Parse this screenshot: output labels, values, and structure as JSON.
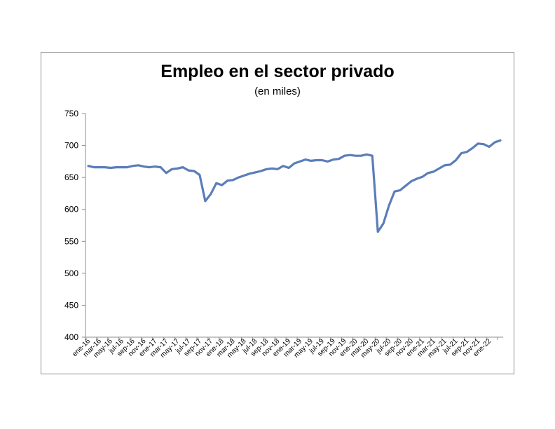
{
  "chart_data": {
    "type": "line",
    "title": "Empleo en el sector privado",
    "subtitle": "(en miles)",
    "xlabel": "",
    "ylabel": "",
    "ylim": [
      400,
      750
    ],
    "yticks": [
      400,
      450,
      500,
      550,
      600,
      650,
      700,
      750
    ],
    "grid": false,
    "legend": "none",
    "line_color": "#5b7db8",
    "x_tick_labels": [
      "ene-16",
      "mar-16",
      "may-16",
      "jul-16",
      "sep-16",
      "nov-16",
      "ene-17",
      "mar-17",
      "may-17",
      "jul-17",
      "sep-17",
      "nov-17",
      "ene-18",
      "mar-18",
      "may-18",
      "jul-18",
      "sep-18",
      "nov-18",
      "ene-19",
      "mar-19",
      "may-19",
      "jul-19",
      "sep-19",
      "nov-19",
      "ene-20",
      "mar-20",
      "may-20",
      "jul-20",
      "sep-20",
      "nov-20",
      "ene-21",
      "mar-21",
      "may-21",
      "jul-21",
      "sep-21",
      "nov-21",
      "ene-22"
    ],
    "series": [
      {
        "values": [
          668,
          666,
          666,
          666,
          665,
          666,
          666,
          666,
          668,
          669,
          667,
          666,
          667,
          666,
          657,
          663,
          664,
          666,
          661,
          660,
          654,
          613,
          624,
          641,
          638,
          645,
          646,
          650,
          653,
          656,
          658,
          660,
          663,
          664,
          663,
          668,
          665,
          672,
          675,
          678,
          676,
          677,
          677,
          675,
          678,
          679,
          684,
          685,
          684,
          684,
          686,
          684,
          565,
          578,
          606,
          628,
          630,
          637,
          644,
          648,
          651,
          657,
          659,
          664,
          669,
          670,
          677,
          688,
          690,
          696,
          703,
          702,
          698,
          705,
          708
        ]
      }
    ]
  }
}
